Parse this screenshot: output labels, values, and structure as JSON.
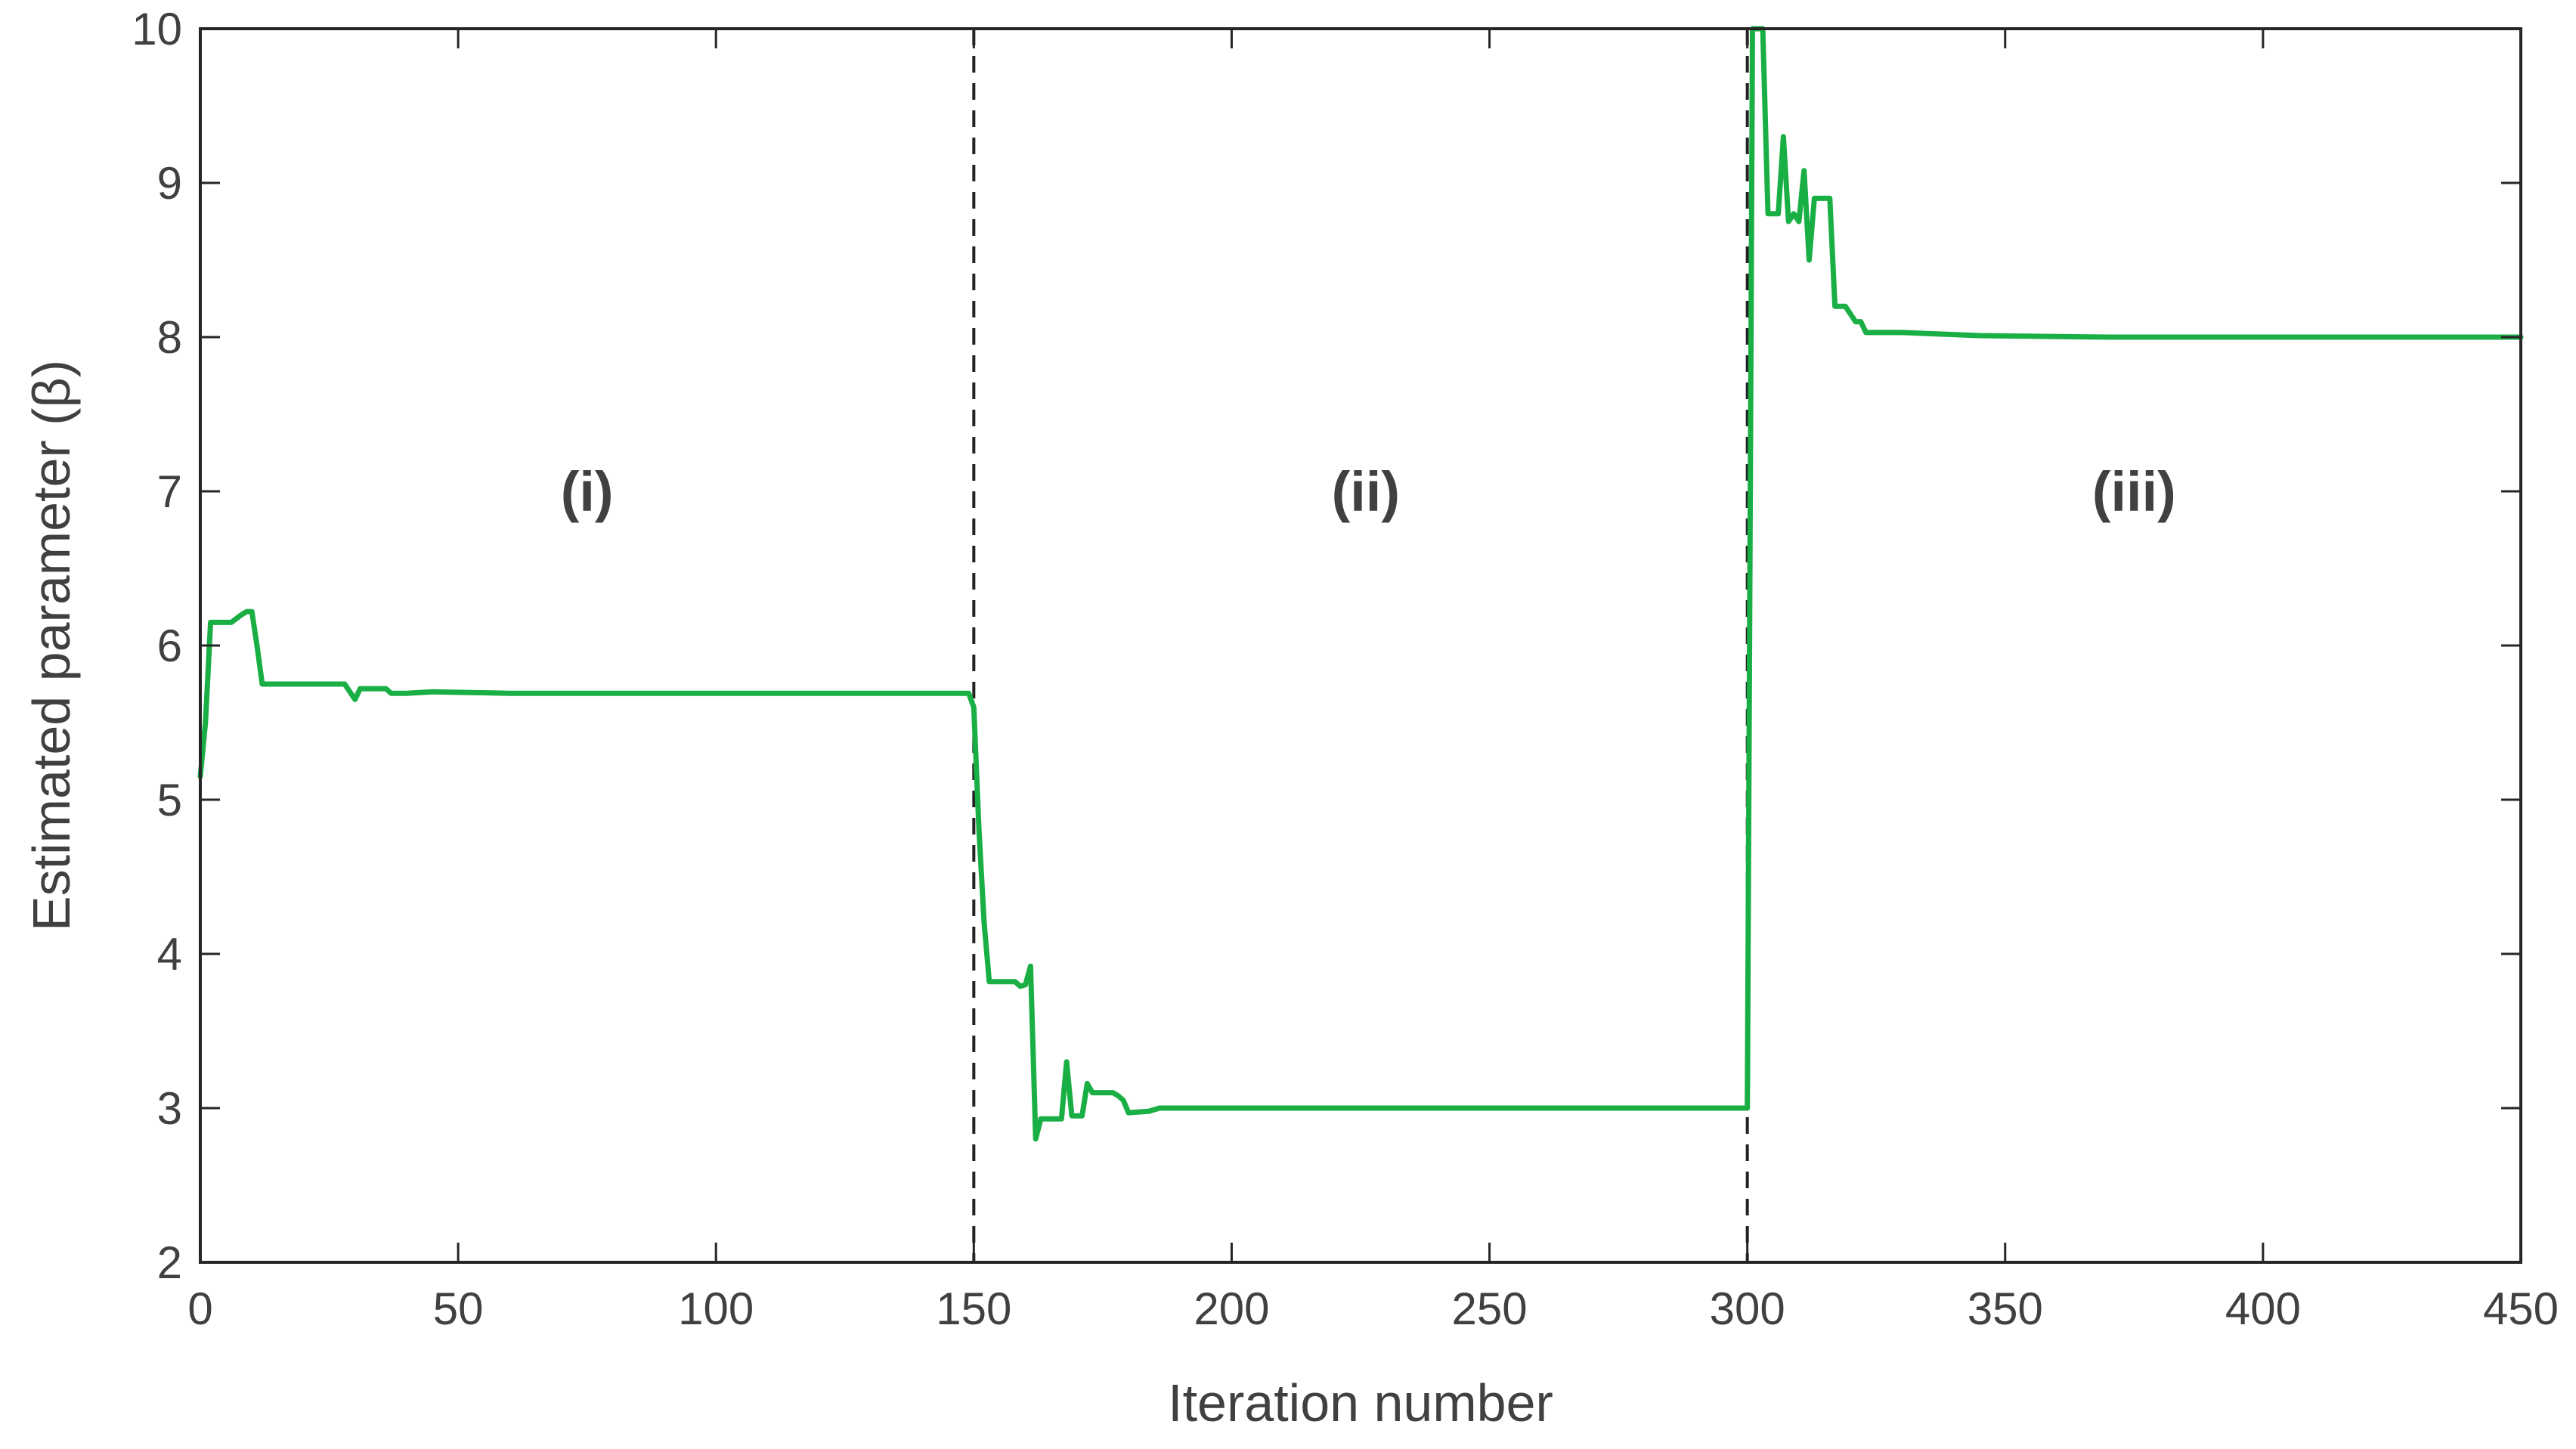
{
  "chart_data": {
    "type": "line",
    "title": "",
    "xlabel": "Iteration number",
    "ylabel": "Estimated parameter (β)",
    "xlim": [
      0,
      450
    ],
    "ylim": [
      2,
      10
    ],
    "xticks": [
      0,
      50,
      100,
      150,
      200,
      250,
      300,
      350,
      400,
      450
    ],
    "yticks": [
      2,
      3,
      4,
      5,
      6,
      7,
      8,
      9,
      10
    ],
    "grid": false,
    "line_color": "#1aaf45",
    "vlines": [
      150,
      300
    ],
    "regions": [
      {
        "label": "(i)",
        "x": 75,
        "y": 7.0
      },
      {
        "label": "(ii)",
        "x": 226,
        "y": 7.0
      },
      {
        "label": "(iii)",
        "x": 375,
        "y": 7.0
      }
    ],
    "series": [
      {
        "x": [
          0,
          1,
          2,
          3,
          6,
          8,
          9,
          10,
          11,
          12,
          28,
          29,
          30,
          31,
          36,
          37,
          40,
          45,
          60,
          100,
          149,
          150,
          151,
          152,
          153,
          154,
          158,
          159,
          160,
          161,
          162,
          163,
          167,
          168,
          169,
          171,
          172,
          173,
          177,
          178,
          179,
          180,
          184,
          186,
          190,
          200,
          220,
          299,
          300,
          301,
          302,
          303,
          304,
          305,
          306,
          307,
          308,
          309,
          310,
          311,
          312,
          313,
          314,
          315,
          316,
          317,
          318,
          319,
          321,
          322,
          323,
          330,
          345,
          370,
          400,
          450
        ],
        "y": [
          5.15,
          5.5,
          6.15,
          6.15,
          6.15,
          6.2,
          6.22,
          6.22,
          6.0,
          5.75,
          5.75,
          5.7,
          5.65,
          5.72,
          5.72,
          5.69,
          5.69,
          5.7,
          5.69,
          5.69,
          5.69,
          5.6,
          4.8,
          4.2,
          3.82,
          3.82,
          3.82,
          3.79,
          3.8,
          3.92,
          2.8,
          2.93,
          2.93,
          3.3,
          2.95,
          2.95,
          3.16,
          3.1,
          3.1,
          3.08,
          3.05,
          2.97,
          2.98,
          3.0,
          3.0,
          3.0,
          3.0,
          3.0,
          3.0,
          10.0,
          10.0,
          10.0,
          8.8,
          8.8,
          8.8,
          9.3,
          8.75,
          8.8,
          8.75,
          9.08,
          8.5,
          8.9,
          8.9,
          8.9,
          8.9,
          8.2,
          8.2,
          8.2,
          8.1,
          8.1,
          8.03,
          8.03,
          8.01,
          8.0,
          8.0,
          8.0
        ]
      }
    ]
  }
}
